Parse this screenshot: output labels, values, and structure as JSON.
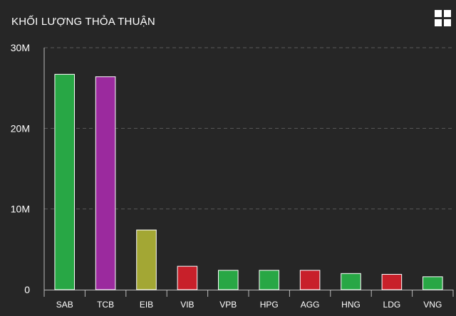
{
  "chart_data": {
    "type": "bar",
    "title": "KHỐI LƯỢNG THỎA THUẬN",
    "categories": [
      "SAB",
      "TCB",
      "EIB",
      "VIB",
      "VPB",
      "HPG",
      "AGG",
      "HNG",
      "LDG",
      "VNG"
    ],
    "values": [
      26700000,
      26400000,
      7400000,
      2900000,
      2400000,
      2400000,
      2400000,
      2000000,
      1900000,
      1600000
    ],
    "bar_colors": [
      "#28a745",
      "#9b2a9e",
      "#a3a734",
      "#c8202a",
      "#28a745",
      "#28a745",
      "#c8202a",
      "#28a745",
      "#c8202a",
      "#28a745"
    ],
    "ylim": [
      0,
      30000000
    ],
    "yticks": [
      0,
      10000000,
      20000000,
      30000000
    ],
    "ytick_labels": [
      "0",
      "10M",
      "20M",
      "30M"
    ],
    "grid": true,
    "xlabel": "",
    "ylabel": ""
  },
  "toolbar": {
    "menu_icon": "grid-menu-icon"
  }
}
